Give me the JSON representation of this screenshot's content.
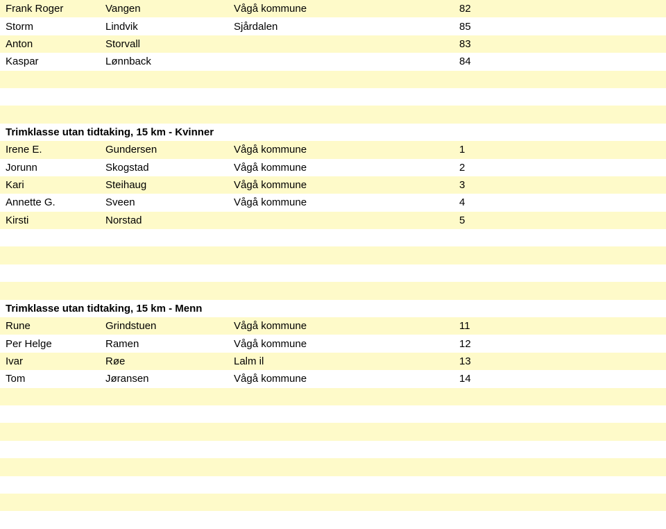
{
  "colors": {
    "stripe": "#fefac9",
    "plain": "#ffffff",
    "text": "#000000"
  },
  "rowHeight": 25.4,
  "sections": [
    {
      "type": "data",
      "rows": [
        {
          "c1": "Frank Roger",
          "c2": "Vangen",
          "c3": "Vågå kommune",
          "c4": "82"
        },
        {
          "c1": "Storm",
          "c2": "Lindvik",
          "c3": "Sjårdalen",
          "c4": "85"
        },
        {
          "c1": "Anton",
          "c2": "Storvall",
          "c3": "",
          "c4": "83"
        },
        {
          "c1": "Kaspar",
          "c2": "Lønnback",
          "c3": "",
          "c4": "84"
        }
      ]
    },
    {
      "type": "blank",
      "count": 3
    },
    {
      "type": "heading",
      "text": "Trimklasse utan tidtaking, 15 km - Kvinner"
    },
    {
      "type": "data",
      "rows": [
        {
          "c1": "Irene E.",
          "c2": "Gundersen",
          "c3": "Vågå kommune",
          "c4": "1"
        },
        {
          "c1": "Jorunn",
          "c2": "Skogstad",
          "c3": "Vågå kommune",
          "c4": "2"
        },
        {
          "c1": "Kari",
          "c2": "Steihaug",
          "c3": "Vågå kommune",
          "c4": "3"
        },
        {
          "c1": "Annette G.",
          "c2": "Sveen",
          "c3": "Vågå kommune",
          "c4": "4"
        },
        {
          "c1": "Kirsti",
          "c2": "Norstad",
          "c3": "",
          "c4": "5"
        }
      ]
    },
    {
      "type": "blank",
      "count": 4
    },
    {
      "type": "heading",
      "text": "Trimklasse utan tidtaking, 15 km - Menn"
    },
    {
      "type": "data",
      "rows": [
        {
          "c1": "Rune",
          "c2": "Grindstuen",
          "c3": "Vågå kommune",
          "c4": "11"
        },
        {
          "c1": "Per Helge",
          "c2": "Ramen",
          "c3": "Vågå kommune",
          "c4": "12"
        },
        {
          "c1": "Ivar",
          "c2": "Røe",
          "c3": "Lalm il",
          "c4": "13"
        },
        {
          "c1": "Tom",
          "c2": "Jøransen",
          "c3": "Vågå kommune",
          "c4": "14"
        }
      ]
    },
    {
      "type": "blank",
      "count": 7
    }
  ]
}
